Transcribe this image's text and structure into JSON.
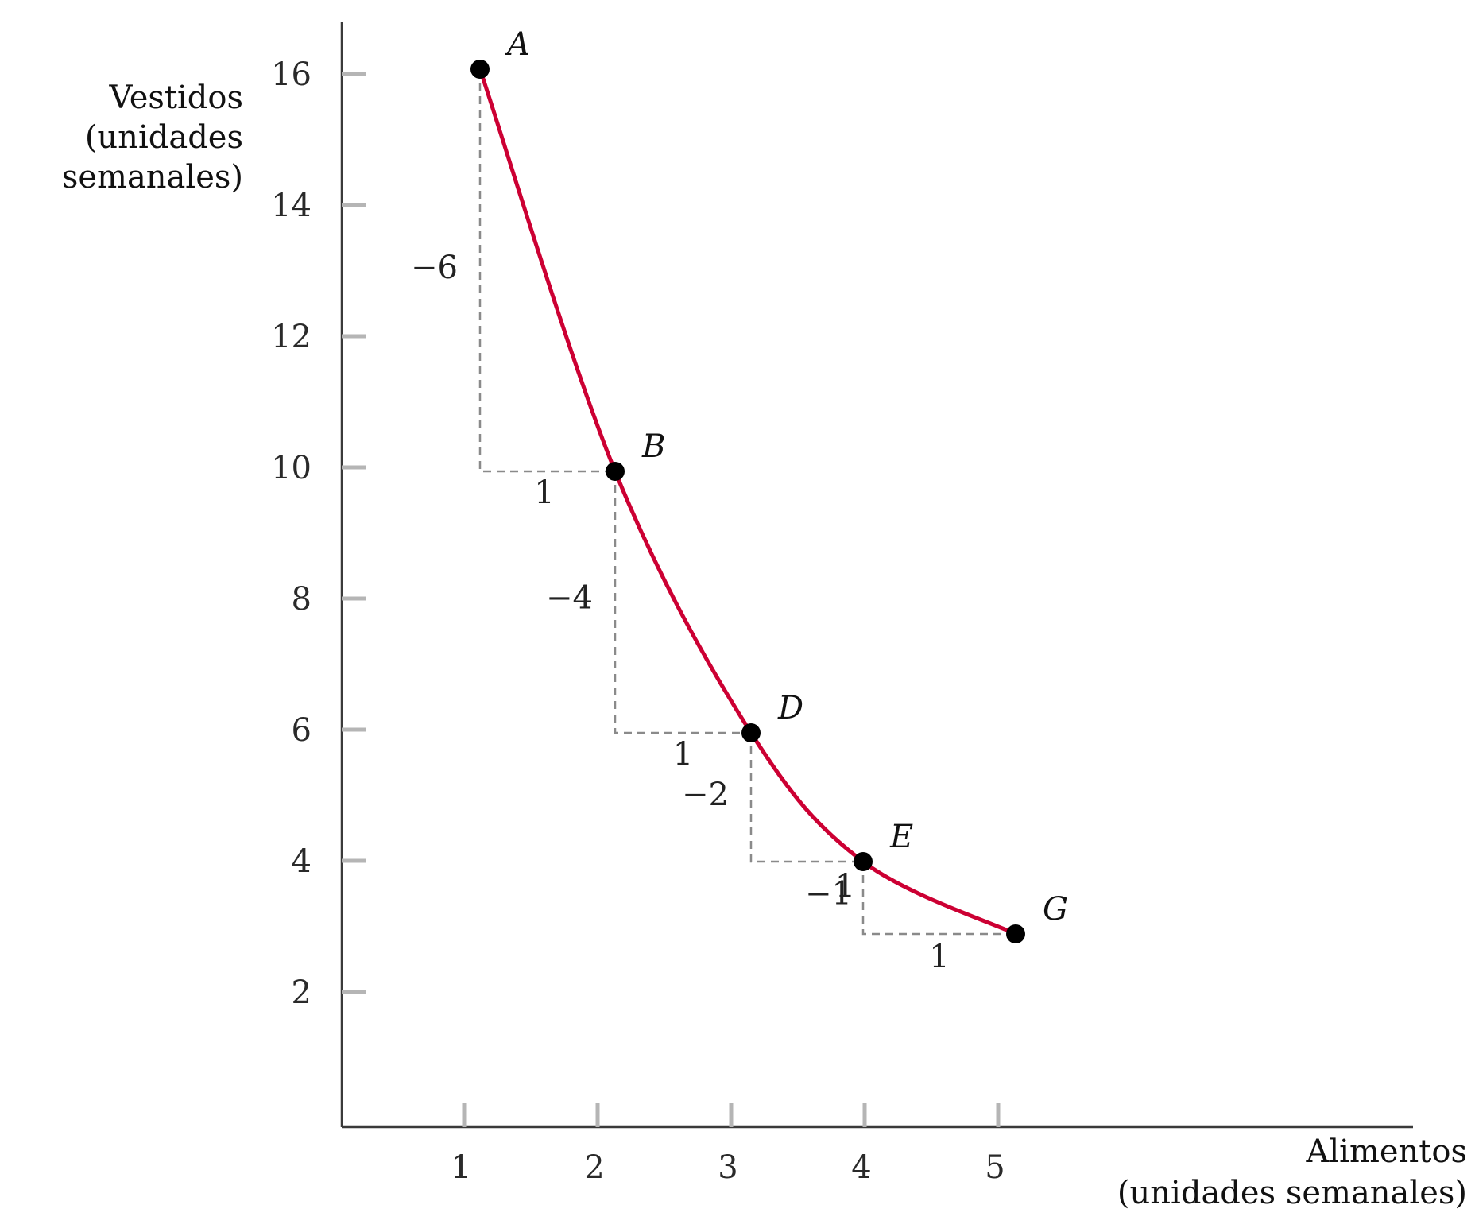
{
  "chart_data": {
    "type": "line",
    "xlabel_lines": [
      "Alimentos",
      "(unidades semanales)"
    ],
    "ylabel_lines": [
      "Vestidos",
      "(unidades",
      "semanales)"
    ],
    "x_ticks": [
      "1",
      "2",
      "3",
      "4",
      "5"
    ],
    "y_ticks": [
      "2",
      "4",
      "6",
      "8",
      "10",
      "12",
      "14",
      "16"
    ],
    "xlim": [
      0,
      8
    ],
    "ylim": [
      0,
      17
    ],
    "grid": false,
    "curve_color": "#cc0033",
    "points": [
      {
        "label": "A",
        "x": 1,
        "y": 16
      },
      {
        "label": "B",
        "x": 2,
        "y": 10
      },
      {
        "label": "D",
        "x": 3,
        "y": 6
      },
      {
        "label": "E",
        "x": 4,
        "y": 4
      },
      {
        "label": "G",
        "x": 5,
        "y": 2.9
      }
    ],
    "steps": [
      {
        "from": "A",
        "to": "B",
        "dy_label": "−6",
        "dx_label": "1"
      },
      {
        "from": "B",
        "to": "D",
        "dy_label": "−4",
        "dx_label": "1"
      },
      {
        "from": "D",
        "to": "E",
        "dy_label": "−2",
        "dx_label": "1"
      },
      {
        "from": "E",
        "to": "G",
        "dy_label": "−1",
        "dx_label": "1"
      }
    ]
  }
}
